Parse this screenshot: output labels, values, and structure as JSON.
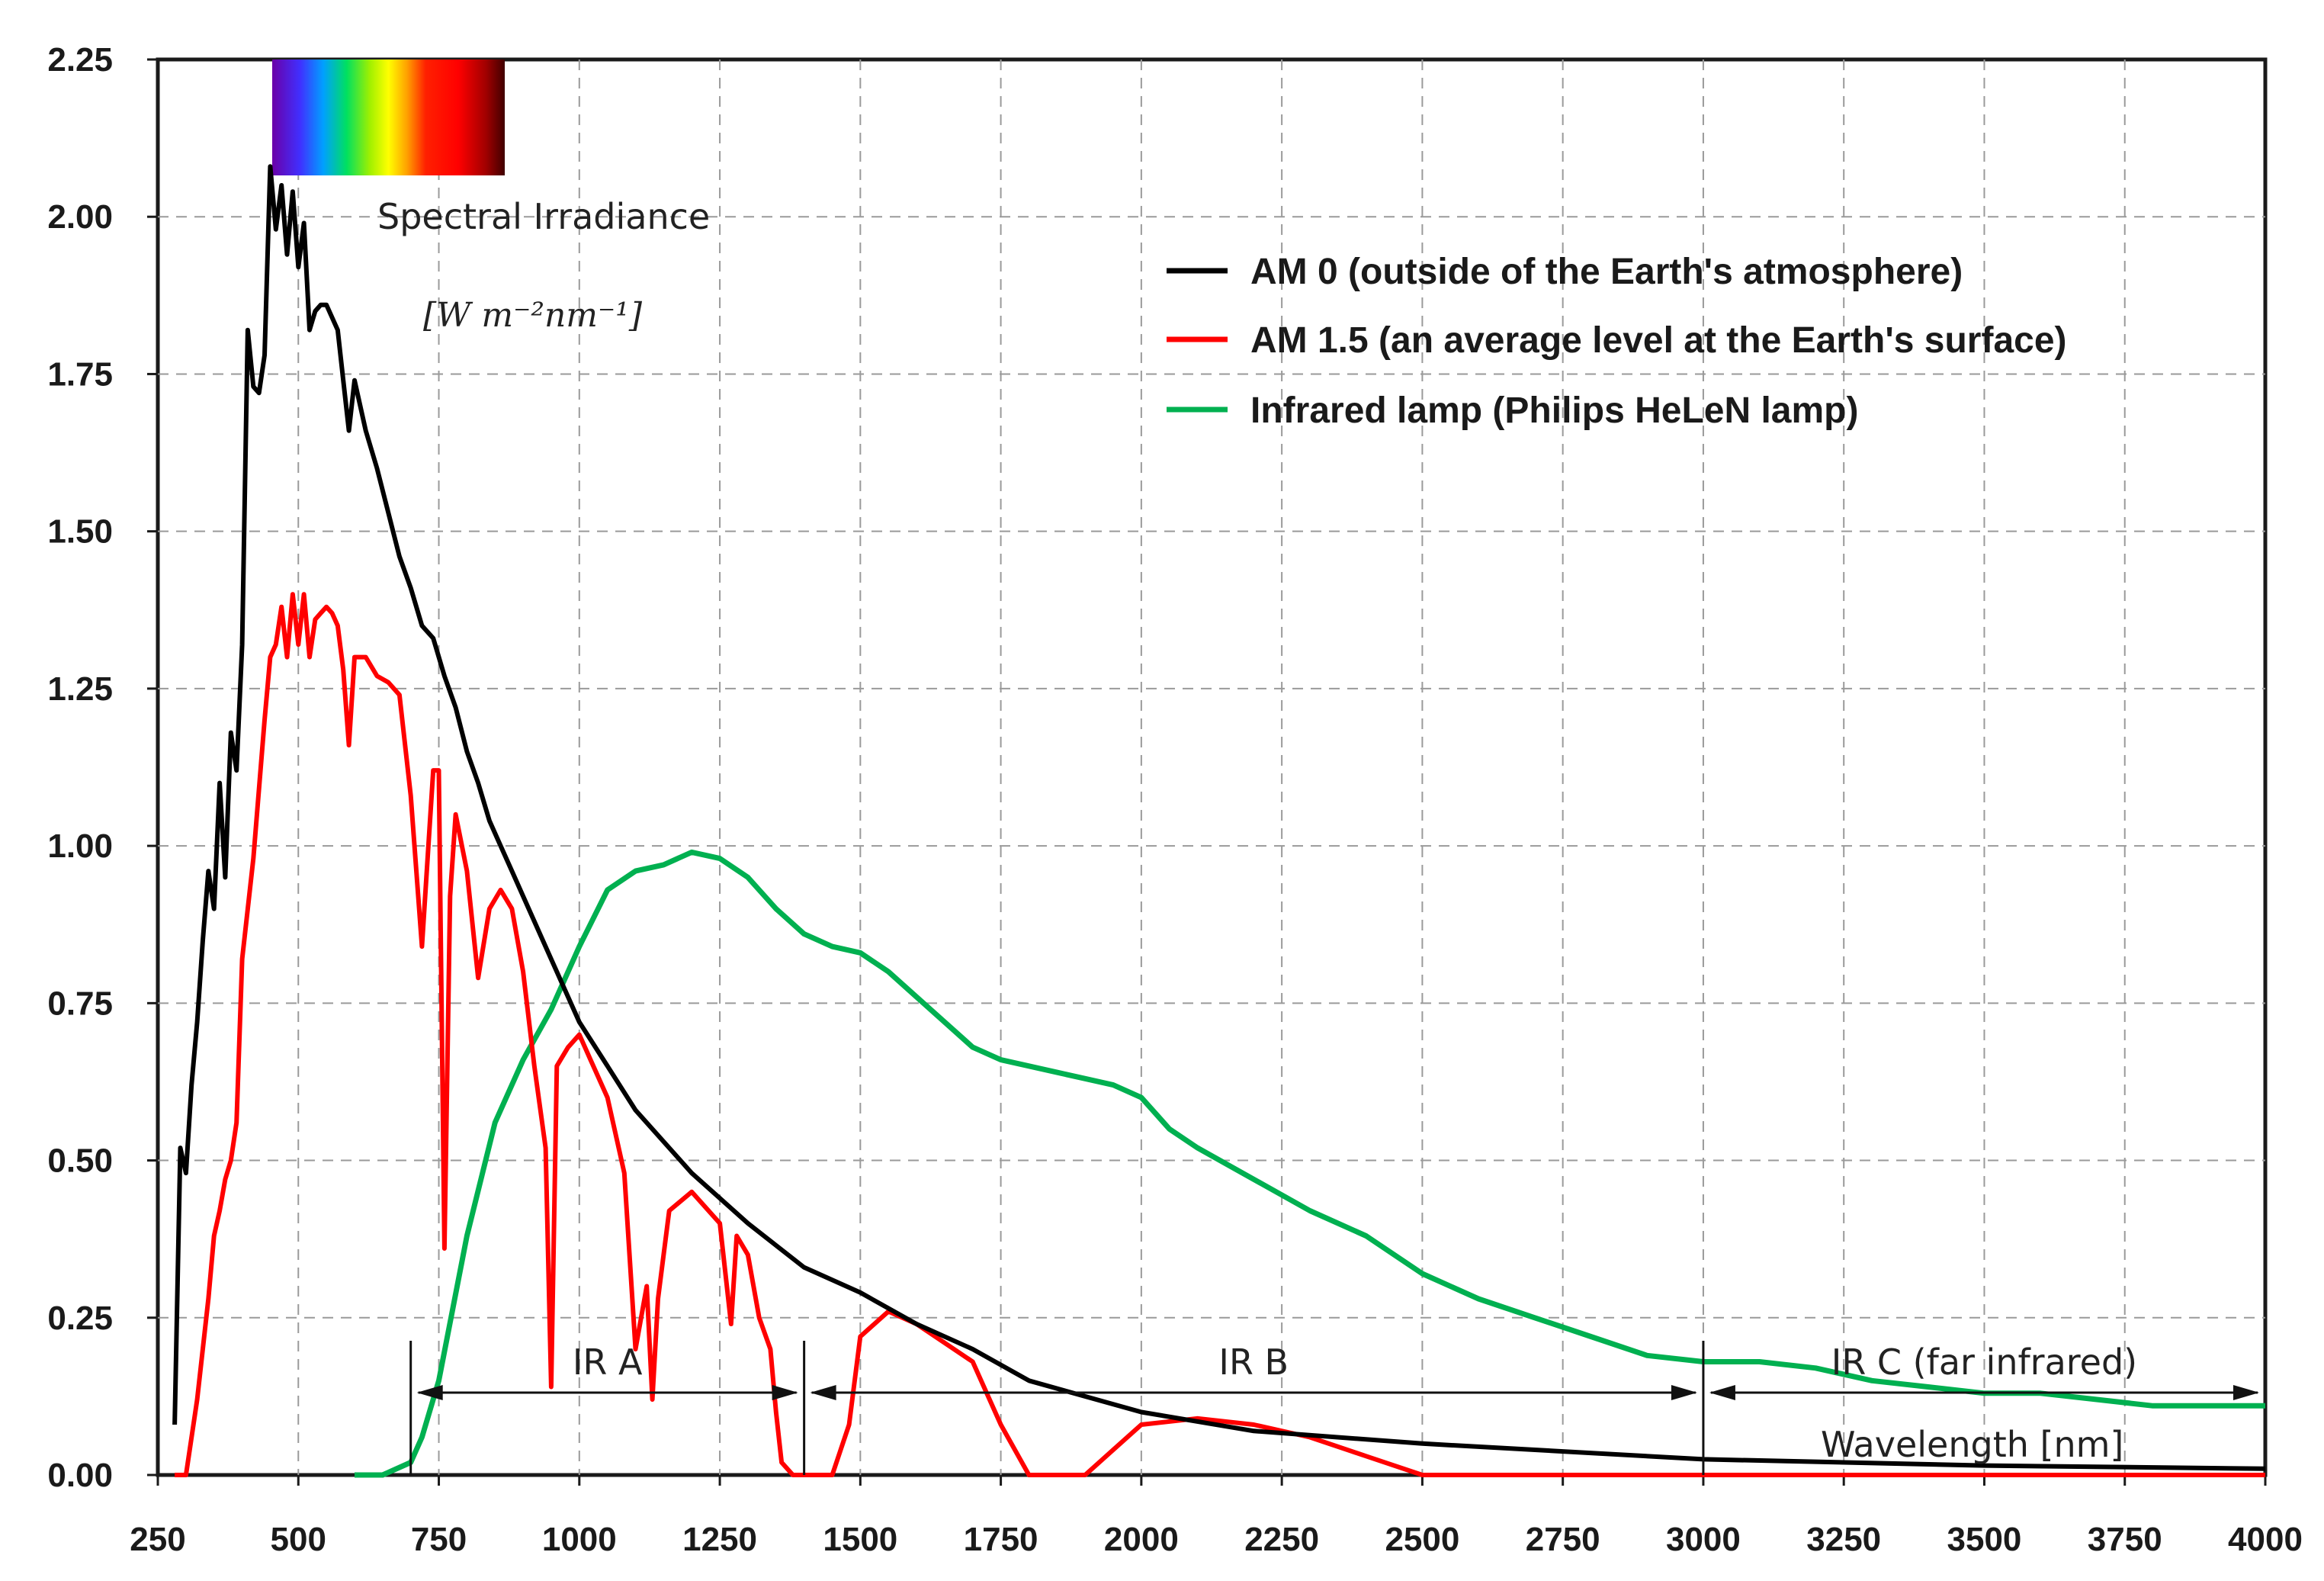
{
  "chart_data": {
    "type": "line",
    "title": "Spectral Irradiance",
    "ylabel_unit": "[W m⁻²nm⁻¹]",
    "xlabel": "Wavelength [nm]",
    "xlim": [
      250,
      4000
    ],
    "ylim": [
      0,
      2.25
    ],
    "grid": true,
    "legend_position": "top-right",
    "xticks": [
      "250",
      "500",
      "750",
      "1000",
      "1250",
      "1500",
      "1750",
      "2000",
      "2250",
      "2500",
      "2750",
      "3000",
      "3250",
      "3500",
      "3750",
      "4000"
    ],
    "yticks": [
      "0.00",
      "0.25",
      "0.50",
      "0.75",
      "1.00",
      "1.25",
      "1.50",
      "1.75",
      "2.00",
      "2.25"
    ],
    "xtick_values": [
      250,
      500,
      750,
      1000,
      1250,
      1500,
      1750,
      2000,
      2250,
      2500,
      2750,
      3000,
      3250,
      3500,
      3750,
      4000
    ],
    "ytick_values": [
      0,
      0.25,
      0.5,
      0.75,
      1.0,
      1.25,
      1.5,
      1.75,
      2.0,
      2.25
    ],
    "series": [
      {
        "name": "AM 0  (outside of the Earth's atmosphere)",
        "color": "#000000",
        "x": [
          280,
          290,
          300,
          310,
          320,
          330,
          340,
          350,
          360,
          370,
          380,
          390,
          400,
          410,
          420,
          430,
          440,
          450,
          460,
          470,
          480,
          490,
          500,
          510,
          520,
          530,
          540,
          550,
          560,
          570,
          580,
          590,
          600,
          620,
          640,
          660,
          680,
          700,
          720,
          740,
          760,
          780,
          800,
          820,
          840,
          860,
          880,
          900,
          950,
          1000,
          1050,
          1100,
          1200,
          1300,
          1400,
          1500,
          1600,
          1700,
          1800,
          2000,
          2200,
          2500,
          3000,
          3500,
          4000
        ],
        "y": [
          0.08,
          0.52,
          0.48,
          0.62,
          0.72,
          0.85,
          0.96,
          0.9,
          1.1,
          0.95,
          1.18,
          1.12,
          1.32,
          1.82,
          1.73,
          1.72,
          1.78,
          2.08,
          1.98,
          2.05,
          1.94,
          2.04,
          1.92,
          1.99,
          1.82,
          1.85,
          1.86,
          1.86,
          1.84,
          1.82,
          1.74,
          1.66,
          1.74,
          1.66,
          1.6,
          1.53,
          1.46,
          1.41,
          1.35,
          1.33,
          1.27,
          1.22,
          1.15,
          1.1,
          1.04,
          1.0,
          0.96,
          0.92,
          0.82,
          0.72,
          0.65,
          0.58,
          0.48,
          0.4,
          0.33,
          0.29,
          0.24,
          0.2,
          0.15,
          0.1,
          0.07,
          0.05,
          0.025,
          0.015,
          0.01
        ]
      },
      {
        "name": "AM 1.5 (an average level at the Earth's surface)",
        "color": "#ff0000",
        "x": [
          280,
          300,
          320,
          340,
          350,
          360,
          370,
          380,
          390,
          400,
          420,
          440,
          450,
          460,
          470,
          480,
          490,
          500,
          510,
          520,
          530,
          540,
          550,
          560,
          570,
          580,
          590,
          600,
          620,
          640,
          660,
          680,
          700,
          720,
          740,
          750,
          760,
          770,
          780,
          800,
          820,
          840,
          860,
          880,
          900,
          920,
          940,
          950,
          960,
          980,
          1000,
          1020,
          1050,
          1080,
          1100,
          1120,
          1130,
          1140,
          1160,
          1200,
          1250,
          1270,
          1280,
          1300,
          1320,
          1340,
          1350,
          1360,
          1380,
          1400,
          1420,
          1450,
          1480,
          1500,
          1550,
          1600,
          1650,
          1700,
          1750,
          1800,
          1850,
          1900,
          1950,
          2000,
          2100,
          2200,
          2300,
          2400,
          2500,
          2600,
          3000,
          3500,
          4000
        ],
        "y": [
          0,
          0,
          0.12,
          0.28,
          0.38,
          0.42,
          0.47,
          0.5,
          0.56,
          0.82,
          0.98,
          1.2,
          1.3,
          1.32,
          1.38,
          1.3,
          1.4,
          1.32,
          1.4,
          1.3,
          1.36,
          1.37,
          1.38,
          1.37,
          1.35,
          1.28,
          1.16,
          1.3,
          1.3,
          1.27,
          1.26,
          1.24,
          1.08,
          0.84,
          1.12,
          1.12,
          0.36,
          0.92,
          1.05,
          0.96,
          0.79,
          0.9,
          0.93,
          0.9,
          0.8,
          0.65,
          0.52,
          0.14,
          0.65,
          0.68,
          0.7,
          0.66,
          0.6,
          0.48,
          0.2,
          0.3,
          0.12,
          0.28,
          0.42,
          0.45,
          0.4,
          0.24,
          0.38,
          0.35,
          0.25,
          0.2,
          0.1,
          0.02,
          0,
          0,
          0,
          0,
          0.08,
          0.22,
          0.26,
          0.24,
          0.21,
          0.18,
          0.08,
          0.0,
          0.0,
          0.0,
          0.04,
          0.08,
          0.09,
          0.08,
          0.06,
          0.03,
          0.0,
          0.0,
          0.0,
          0.0,
          0.0
        ]
      },
      {
        "name": "Infrared lamp (Philips HeLeN lamp)",
        "color": "#00b050",
        "x": [
          600,
          650,
          700,
          720,
          750,
          800,
          850,
          900,
          950,
          1000,
          1050,
          1100,
          1150,
          1200,
          1250,
          1300,
          1350,
          1400,
          1450,
          1500,
          1550,
          1600,
          1650,
          1700,
          1750,
          1800,
          1850,
          1900,
          1950,
          2000,
          2050,
          2100,
          2200,
          2300,
          2400,
          2500,
          2600,
          2700,
          2800,
          2900,
          3000,
          3100,
          3200,
          3300,
          3400,
          3500,
          3600,
          3700,
          3800,
          3900,
          4000
        ],
        "y": [
          0.0,
          0.0,
          0.02,
          0.06,
          0.15,
          0.38,
          0.56,
          0.66,
          0.74,
          0.84,
          0.93,
          0.96,
          0.97,
          0.99,
          0.98,
          0.95,
          0.9,
          0.86,
          0.84,
          0.83,
          0.8,
          0.76,
          0.72,
          0.68,
          0.66,
          0.65,
          0.64,
          0.63,
          0.62,
          0.6,
          0.55,
          0.52,
          0.47,
          0.42,
          0.38,
          0.32,
          0.28,
          0.25,
          0.22,
          0.19,
          0.18,
          0.18,
          0.17,
          0.15,
          0.14,
          0.13,
          0.13,
          0.12,
          0.11,
          0.11,
          0.11
        ]
      }
    ],
    "regions": [
      {
        "label": "IR A",
        "from": 700,
        "to": 1400
      },
      {
        "label": "IR B",
        "from": 1400,
        "to": 3000
      },
      {
        "label": "IR C (far infrared)",
        "from": 3000,
        "to": 4000
      }
    ]
  }
}
